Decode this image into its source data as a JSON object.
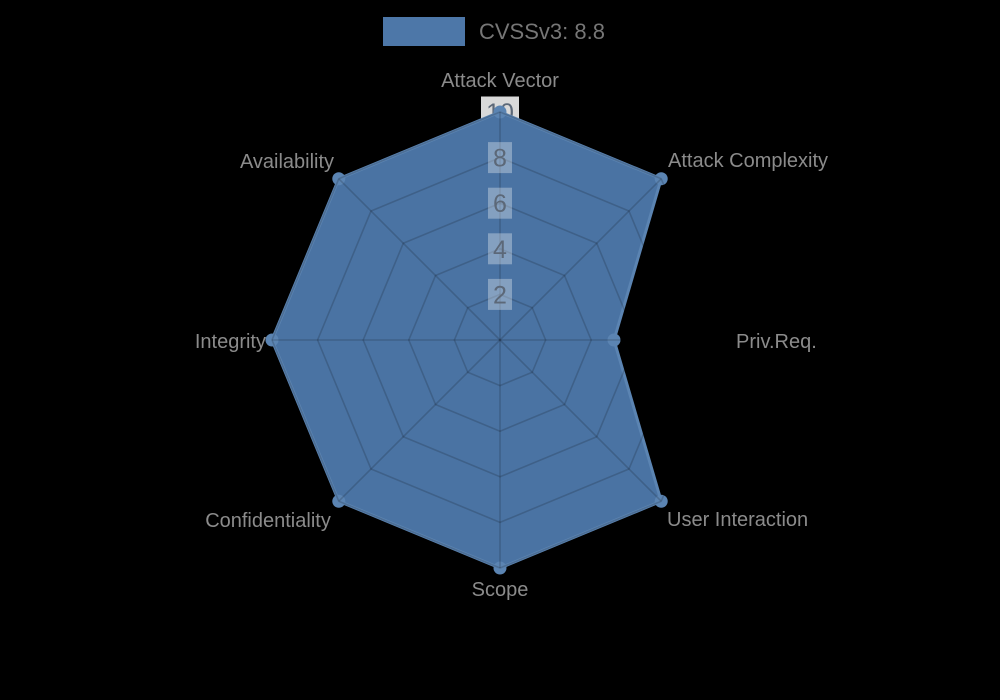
{
  "legend": {
    "label": "CVSSv3: 8.8",
    "swatch_color": "#4d77a8"
  },
  "chart_data": {
    "type": "radar",
    "title": "CVSSv3: 8.8",
    "categories": [
      "Attack Vector",
      "Attack Complexity",
      "Priv.Req.",
      "User Interaction",
      "Scope",
      "Confidentiality",
      "Integrity",
      "Availability"
    ],
    "series": [
      {
        "name": "CVSSv3: 8.8",
        "values": [
          10,
          10,
          5,
          10,
          10,
          10,
          10,
          10
        ]
      }
    ],
    "scale": {
      "min": 0,
      "max": 10,
      "tick_step": 2,
      "ticks": [
        2,
        4,
        6,
        8,
        10
      ]
    },
    "layout_hints": {
      "legend_position": "top",
      "start_axis": "top",
      "direction": "clockwise",
      "grid_shape": "polygon-web",
      "background": "#000000"
    },
    "colors": {
      "series_fill": "#4a73a3",
      "series_stroke": "#5b84b2",
      "point_marker": "#5b84b2",
      "legend_swatch": "#4d77a8",
      "grid_line": "rgba(0,0,0,0.16)",
      "tick_backdrop_inner": "rgba(255,255,255,0.32)",
      "tick_backdrop_outer": "rgba(255,255,255,0.85)",
      "tick_text": "#5c6878",
      "axis_label": "#8b8b8b",
      "legend_text": "#767676"
    }
  }
}
